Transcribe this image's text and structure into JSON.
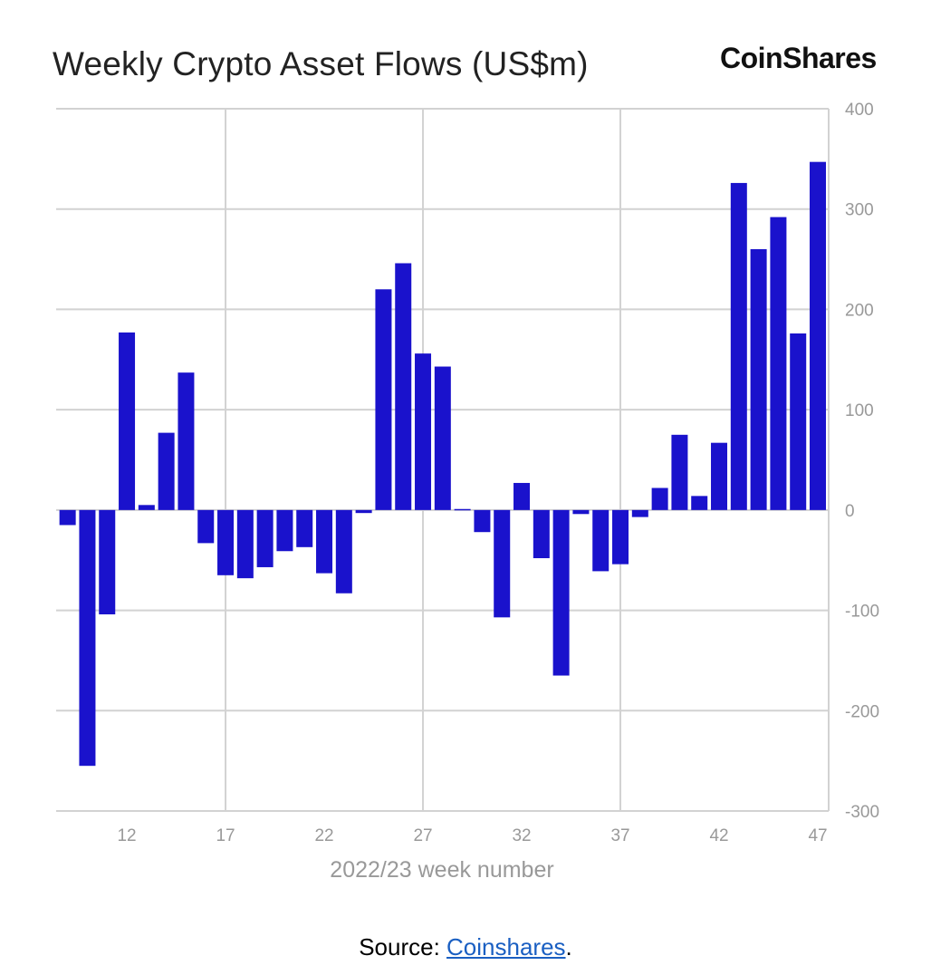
{
  "chart_data": {
    "type": "bar",
    "title": "Weekly Crypto Asset Flows (US$m)",
    "brand": "CoinShares",
    "xlabel": "2022/23 week number",
    "ylabel": "",
    "ylim": [
      -300,
      400
    ],
    "yticks": [
      400,
      300,
      200,
      100,
      0,
      -100,
      -200,
      -300
    ],
    "xticks": [
      12,
      17,
      22,
      27,
      32,
      37,
      42,
      47
    ],
    "grid": true,
    "bar_color": "#1a12cc",
    "x": [
      9,
      10,
      11,
      12,
      13,
      14,
      15,
      16,
      17,
      18,
      19,
      20,
      21,
      22,
      23,
      24,
      25,
      26,
      27,
      28,
      29,
      30,
      31,
      32,
      33,
      34,
      35,
      36,
      37,
      38,
      39,
      40,
      41,
      42,
      43,
      44,
      45,
      46,
      47
    ],
    "values": [
      -15,
      -255,
      -104,
      177,
      5,
      77,
      137,
      -33,
      -65,
      -68,
      -57,
      -41,
      -37,
      -63,
      -83,
      -3,
      220,
      246,
      156,
      143,
      1,
      -22,
      -107,
      27,
      -48,
      -165,
      -4,
      -61,
      -54,
      -7,
      22,
      75,
      14,
      67,
      326,
      260,
      292,
      176,
      347
    ]
  },
  "footer": {
    "source_prefix": "Source: ",
    "source_link": "Coinshares",
    "source_suffix": "."
  }
}
